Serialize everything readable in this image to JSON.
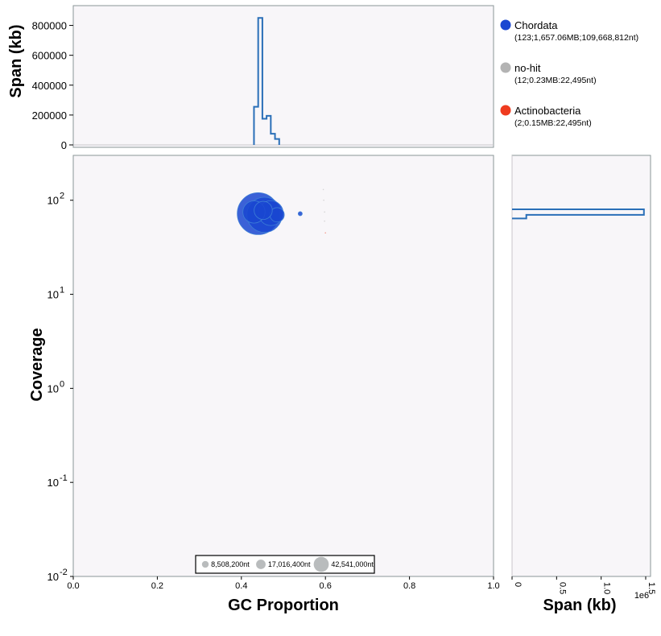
{
  "chart_data": [
    {
      "type": "scatter",
      "name": "blob plot",
      "xlabel": "GC Proportion",
      "ylabel": "Coverage",
      "xlim": [
        0.0,
        1.0
      ],
      "ylim": [
        0.01,
        300
      ],
      "yscale": "log",
      "x_ticks": [
        "0.0",
        "0.2",
        "0.4",
        "0.6",
        "0.8",
        "1.0"
      ],
      "y_ticks": [
        {
          "base": "10",
          "exp": "2",
          "value": 100
        },
        {
          "base": "10",
          "exp": "1",
          "value": 10
        },
        {
          "base": "10",
          "exp": "0",
          "value": 1
        },
        {
          "base": "10",
          "exp": "-1",
          "value": 0.1
        },
        {
          "base": "10",
          "exp": "-2",
          "value": 0.01
        }
      ],
      "points": [
        {
          "x": 0.44,
          "y": 72,
          "size": 42541000,
          "series": "Chordata"
        },
        {
          "x": 0.455,
          "y": 70,
          "size": 30000000,
          "series": "Chordata"
        },
        {
          "x": 0.47,
          "y": 73,
          "size": 15000000,
          "series": "Chordata"
        },
        {
          "x": 0.485,
          "y": 70,
          "size": 5000000,
          "series": "Chordata"
        },
        {
          "x": 0.43,
          "y": 75,
          "size": 12000000,
          "series": "Chordata"
        },
        {
          "x": 0.452,
          "y": 78,
          "size": 8000000,
          "series": "Chordata"
        },
        {
          "x": 0.54,
          "y": 72,
          "size": 400000,
          "series": "Chordata"
        },
        {
          "x": 0.598,
          "y": 75,
          "size": 20000,
          "series": "no-hit"
        },
        {
          "x": 0.598,
          "y": 60,
          "size": 20000,
          "series": "no-hit"
        },
        {
          "x": 0.596,
          "y": 100,
          "size": 15000,
          "series": "no-hit"
        },
        {
          "x": 0.6,
          "y": 45,
          "size": 15000,
          "series": "Actinobacteria"
        },
        {
          "x": 0.595,
          "y": 130,
          "size": 10000,
          "series": "no-hit"
        }
      ],
      "size_legend": [
        "8,508,200nt",
        "17,016,400nt",
        "42,541,000nt"
      ],
      "size_legend_values": [
        8508200,
        17016400,
        42541000
      ]
    },
    {
      "type": "line",
      "name": "GC span histogram",
      "ylabel": "Span (kb)",
      "xlim": [
        0.0,
        1.0
      ],
      "ylim": [
        0,
        900000
      ],
      "y_ticks": [
        "0",
        "200000",
        "400000",
        "600000",
        "800000"
      ],
      "y_tick_values": [
        0,
        200000,
        400000,
        600000,
        800000
      ],
      "bin_edges": [
        0.43,
        0.44,
        0.45,
        0.46,
        0.47,
        0.48,
        0.49
      ],
      "values": [
        255000,
        850000,
        175000,
        195000,
        75000,
        40000
      ],
      "baseline": [
        0.0,
        1.0
      ]
    },
    {
      "type": "line",
      "name": "coverage span histogram",
      "xlabel": "Span (kb)",
      "xlim": [
        0,
        1500000
      ],
      "x_ticks": [
        "0",
        "0.5",
        "1.0",
        "1.5"
      ],
      "x_tick_values": [
        0,
        500000,
        1000000,
        1500000
      ],
      "x_multiplier": "1e6",
      "steps": [
        {
          "y_low": 70,
          "y_high": 80,
          "value": 1480000
        },
        {
          "y_low": 64,
          "y_high": 70,
          "value": 160000
        }
      ]
    }
  ],
  "legend": [
    {
      "name": "Chordata",
      "detail": "(123;1,657.06MB;109,668,812nt)",
      "color": "#1a47d1"
    },
    {
      "name": "no-hit",
      "detail": "(12;0.23MB:22,495nt)",
      "color": "#b3b3b3"
    },
    {
      "name": "Actinobacteria",
      "detail": "(2;0.15MB:22,495nt)",
      "color": "#ef3b1f"
    }
  ],
  "colors": {
    "Chordata": "#1a47d1",
    "no-hit": "#b3b3b3",
    "Actinobacteria": "#ef3b1f",
    "histogram": "#2a6fb8",
    "panel": "#f8f6f9"
  }
}
